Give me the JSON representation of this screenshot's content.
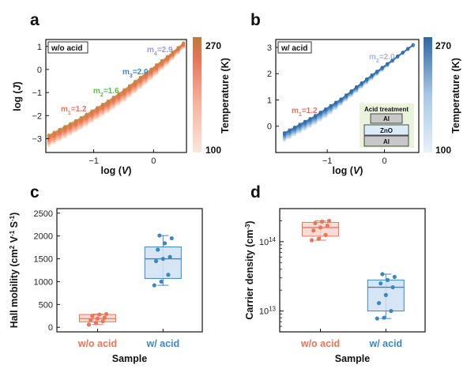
{
  "panels": {
    "a": {
      "label": "a",
      "box_text": "w/o acid",
      "xlabel_pre": "log (",
      "xlabel_var": "V",
      "xlabel_post": ")",
      "ylabel_pre": "log (",
      "ylabel_var": "J",
      "ylabel_post": ")",
      "colorbar_title": "Temperature (K)",
      "colorbar_max": "270",
      "colorbar_min": "100",
      "slope_labels": [
        {
          "base": "m",
          "sub": "1",
          "value": "=1.2",
          "color": "#e8765a"
        },
        {
          "base": "m",
          "sub": "2",
          "value": "=1.6",
          "color": "#5cbb43"
        },
        {
          "base": "m",
          "sub": "3",
          "value": "=2.0",
          "color": "#3d86c2"
        },
        {
          "base": "m",
          "sub": "4",
          "value": "=2.9",
          "color": "#9b9bd4"
        }
      ]
    },
    "b": {
      "label": "b",
      "box_text": "w/ acid",
      "xlabel_pre": "log (",
      "xlabel_var": "V",
      "xlabel_post": ")",
      "colorbar_title": "Temperature (K)",
      "colorbar_max": "270",
      "colorbar_min": "100",
      "slope_labels": [
        {
          "base": "m",
          "sub": "1",
          "value": "=1.2",
          "color": "#e8765a"
        },
        {
          "base": "m",
          "sub": "2",
          "value": "=2.0",
          "color": "#a8b4dc"
        }
      ],
      "inset": {
        "title": "Acid treatment",
        "layers": [
          "Al",
          "ZnO",
          "Al"
        ]
      }
    },
    "c": {
      "label": "c",
      "ylabel_line1": "Hall mobility (cm",
      "ylabel_sup1": "2",
      "ylabel_mid": " V",
      "ylabel_sup2": "-1",
      "ylabel_mid2": " S",
      "ylabel_sup3": "-1",
      "ylabel_end": ")",
      "xlabel": "Sample"
    },
    "d": {
      "label": "d",
      "ylabel_pre": "Carrier density (cm",
      "ylabel_sup": "-3",
      "ylabel_post": ")",
      "xlabel": "Sample"
    }
  },
  "colors": {
    "orange": "#e8765a",
    "blue": "#3d86c2",
    "orange_fill": "#f9d6cc",
    "blue_fill": "#cfe2f3",
    "green": "#5cbb43"
  },
  "chart_data": [
    {
      "type": "line",
      "panel": "a",
      "xlabel": "log (V)",
      "ylabel": "log (J)",
      "xlim": [
        -1.8,
        0.55
      ],
      "ylim": [
        -3.6,
        1.3
      ],
      "xticks": [
        -1,
        0
      ],
      "yticks": [
        -3,
        -2,
        -1,
        0,
        1
      ],
      "colorbar": {
        "label": "Temperature (K)",
        "min": 100,
        "max": 270,
        "colors": [
          "#fbe3d8",
          "#f7a98a",
          "#e8765a",
          "#c98538"
        ]
      },
      "series_note": "J-V curves at temperatures from 100 K to 270 K",
      "series": [
        {
          "temperature": 100,
          "x": [
            -1.75,
            -1.5,
            -1.25,
            -1.0,
            -0.75,
            -0.5,
            -0.25,
            0.0,
            0.25,
            0.5
          ],
          "y": [
            -3.3,
            -2.95,
            -2.6,
            -2.2,
            -1.8,
            -1.35,
            -0.85,
            -0.3,
            0.3,
            0.95
          ]
        },
        {
          "temperature": 185,
          "x": [
            -1.75,
            -1.5,
            -1.25,
            -1.0,
            -0.75,
            -0.5,
            -0.25,
            0.0,
            0.25,
            0.5
          ],
          "y": [
            -3.1,
            -2.75,
            -2.4,
            -2.0,
            -1.6,
            -1.15,
            -0.65,
            -0.1,
            0.45,
            1.05
          ]
        },
        {
          "temperature": 270,
          "x": [
            -1.75,
            -1.5,
            -1.25,
            -1.0,
            -0.75,
            -0.5,
            -0.25,
            0.0,
            0.25,
            0.5
          ],
          "y": [
            -2.85,
            -2.5,
            -2.15,
            -1.75,
            -1.35,
            -0.9,
            -0.4,
            0.1,
            0.6,
            1.15
          ]
        }
      ]
    },
    {
      "type": "line",
      "panel": "b",
      "xlabel": "log (V)",
      "xlim": [
        -1.9,
        0.6
      ],
      "ylim": [
        -1.0,
        3.3
      ],
      "xticks": [
        -1,
        0
      ],
      "yticks": [
        0,
        1,
        2,
        3
      ],
      "colorbar": {
        "label": "Temperature (K)",
        "min": 100,
        "max": 270,
        "colors": [
          "#e6f0f8",
          "#a7c6e4",
          "#5d94c6",
          "#2f6aa6"
        ]
      },
      "series_note": "J-V curves at temperatures from 100 K to 270 K",
      "series": [
        {
          "temperature": 100,
          "x": [
            -1.75,
            -1.5,
            -1.25,
            -1.0,
            -0.75,
            -0.5,
            -0.25,
            0.0,
            0.25,
            0.5
          ],
          "y": [
            -0.55,
            -0.25,
            0.05,
            0.4,
            0.85,
            1.3,
            1.75,
            2.2,
            2.65,
            3.05
          ]
        },
        {
          "temperature": 185,
          "x": [
            -1.75,
            -1.5,
            -1.25,
            -1.0,
            -0.75,
            -0.5,
            -0.25,
            0.0,
            0.25,
            0.5
          ],
          "y": [
            -0.4,
            -0.1,
            0.2,
            0.55,
            0.95,
            1.4,
            1.82,
            2.25,
            2.68,
            3.07
          ]
        },
        {
          "temperature": 270,
          "x": [
            -1.75,
            -1.5,
            -1.25,
            -1.0,
            -0.75,
            -0.5,
            -0.25,
            0.0,
            0.25,
            0.5
          ],
          "y": [
            -0.25,
            0.05,
            0.35,
            0.7,
            1.05,
            1.48,
            1.9,
            2.3,
            2.7,
            3.1
          ]
        }
      ]
    },
    {
      "type": "box",
      "panel": "c",
      "xlabel": "Sample",
      "ylabel": "Hall mobility (cm2 V-1 S-1)",
      "ylim": [
        -100,
        2600
      ],
      "yticks": [
        0,
        500,
        1000,
        1500,
        2000,
        2500
      ],
      "categories": [
        "w/o acid",
        "w/ acid"
      ],
      "boxes": [
        {
          "category": "w/o acid",
          "q1": 120,
          "median": 190,
          "q3": 280,
          "whisker_low": 60,
          "whisker_high": 290,
          "points": [
            60,
            100,
            130,
            160,
            190,
            210,
            250,
            280,
            290
          ]
        },
        {
          "category": "w/ acid",
          "q1": 1070,
          "median": 1500,
          "q3": 1760,
          "whisker_low": 920,
          "whisker_high": 2010,
          "points": [
            920,
            1000,
            1150,
            1450,
            1500,
            1540,
            1700,
            1840,
            1950,
            2010
          ]
        }
      ]
    },
    {
      "type": "box",
      "panel": "d",
      "xlabel": "Sample",
      "ylabel": "Carrier density (cm-3)",
      "yscale": "log",
      "ylim": [
        5000000000000.0,
        300000000000000.0
      ],
      "yticks": [
        "10^13",
        "10^14"
      ],
      "categories": [
        "w/o acid",
        "w/ acid"
      ],
      "boxes": [
        {
          "category": "w/o acid",
          "q1": 120000000000000.0,
          "median": 160000000000000.0,
          "q3": 190000000000000.0,
          "whisker_low": 105000000000000.0,
          "whisker_high": 200000000000000.0,
          "points": [
            105000000000000.0,
            110000000000000.0,
            125000000000000.0,
            145000000000000.0,
            160000000000000.0,
            170000000000000.0,
            185000000000000.0,
            195000000000000.0,
            200000000000000.0
          ]
        },
        {
          "category": "w/ acid",
          "q1": 10000000000000.0,
          "median": 22000000000000.0,
          "q3": 28000000000000.0,
          "whisker_low": 7800000000000.0,
          "whisker_high": 34000000000000.0,
          "points": [
            7800000000000.0,
            8000000000000.0,
            10000000000000.0,
            13000000000000.0,
            17000000000000.0,
            22000000000000.0,
            25000000000000.0,
            28000000000000.0,
            31000000000000.0,
            34000000000000.0
          ]
        }
      ]
    }
  ]
}
